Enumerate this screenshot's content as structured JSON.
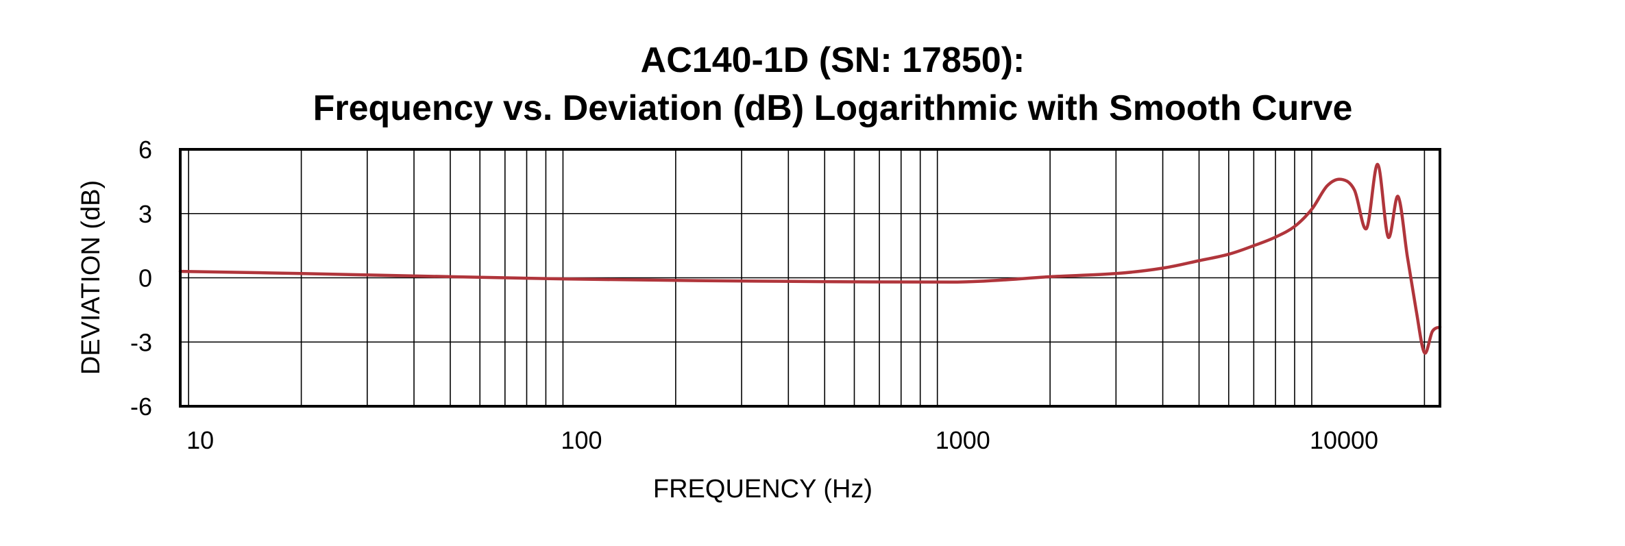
{
  "chart_data": {
    "type": "line",
    "title": "AC140-1D (SN: 17850):",
    "subtitle": "Frequency vs. Deviation (dB) Logarithmic with Smooth Curve",
    "xlabel": "FREQUENCY (Hz)",
    "ylabel": "DEVIATION (dB)",
    "xscale": "log",
    "xlim": [
      9.5,
      22000
    ],
    "ylim": [
      -6,
      6
    ],
    "xticks": [
      "10",
      "100",
      "1000",
      "10000"
    ],
    "yticks": [
      "6",
      "3",
      "0",
      "-3",
      "-6"
    ],
    "grid": true,
    "line_color": "#b0353b",
    "series": [
      {
        "x": [
          9.5,
          20,
          50,
          100,
          200,
          500,
          1100,
          1500,
          2000,
          3000,
          4000,
          5000,
          6000,
          7000,
          8000,
          9000,
          10000,
          11000,
          12000,
          13000,
          14000,
          15000,
          16000,
          17000,
          18000,
          19000,
          20000,
          21000,
          22000
        ],
        "y": [
          0.3,
          0.2,
          0.05,
          -0.05,
          -0.12,
          -0.18,
          -0.2,
          -0.1,
          0.05,
          0.2,
          0.45,
          0.8,
          1.1,
          1.5,
          1.9,
          2.4,
          3.2,
          4.3,
          4.6,
          4.1,
          2.3,
          5.3,
          1.9,
          3.8,
          1.0,
          -1.5,
          -3.5,
          -2.5,
          -2.3
        ]
      }
    ]
  }
}
